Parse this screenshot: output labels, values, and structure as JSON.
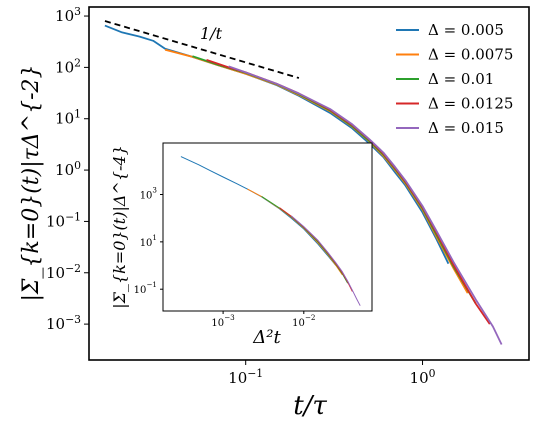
{
  "chart_data": [
    {
      "type": "line",
      "xlabel": "t/τ",
      "ylabel": "|Σ_{k=0}(t)|τΔ^{-2}",
      "xscale": "log",
      "yscale": "log",
      "xlim": [
        0.013,
        4.0
      ],
      "ylim": [
        0.0002,
        1500
      ],
      "xticks": [
        {
          "value": 0.1,
          "base": "10",
          "exp": "−1"
        },
        {
          "value": 1,
          "base": "10",
          "exp": "0"
        }
      ],
      "yticks": [
        {
          "value": 1000,
          "base": "10",
          "exp": "3"
        },
        {
          "value": 100,
          "base": "10",
          "exp": "2"
        },
        {
          "value": 10,
          "base": "10",
          "exp": "1"
        },
        {
          "value": 1,
          "base": "10",
          "exp": "0"
        },
        {
          "value": 0.1,
          "base": "10",
          "exp": "−1"
        },
        {
          "value": 0.01,
          "base": "10",
          "exp": "−2"
        },
        {
          "value": 0.001,
          "base": "10",
          "exp": "−3"
        }
      ],
      "grid": false,
      "legend_position": "top-right",
      "reference_line": {
        "label": "1/t",
        "style": "dashed",
        "color": "#000000",
        "x": [
          0.016,
          0.2
        ],
        "y": [
          800,
          62
        ]
      },
      "series": [
        {
          "name": "Δ = 0.005",
          "color": "#1f77b4",
          "x": [
            0.016,
            0.02,
            0.025,
            0.03,
            0.035,
            0.05,
            0.07,
            0.1,
            0.15,
            0.2,
            0.3,
            0.4,
            0.5,
            0.6,
            0.7,
            0.8,
            1.0,
            1.2,
            1.4
          ],
          "y": [
            650,
            480,
            400,
            330,
            230,
            160,
            110,
            75,
            45,
            28,
            13,
            6.5,
            3.3,
            1.8,
            0.9,
            0.5,
            0.15,
            0.045,
            0.015
          ]
        },
        {
          "name": "Δ = 0.0075",
          "color": "#ff7f0e",
          "x": [
            0.035,
            0.05,
            0.07,
            0.1,
            0.15,
            0.2,
            0.3,
            0.4,
            0.5,
            0.6,
            0.7,
            0.8,
            1.0,
            1.2,
            1.5,
            1.8
          ],
          "y": [
            220,
            160,
            110,
            75,
            46,
            29,
            14,
            7,
            3.6,
            1.9,
            1.0,
            0.55,
            0.17,
            0.05,
            0.012,
            0.004
          ]
        },
        {
          "name": "Δ = 0.01",
          "color": "#2ca02c",
          "x": [
            0.05,
            0.07,
            0.1,
            0.15,
            0.2,
            0.3,
            0.4,
            0.5,
            0.6,
            0.7,
            0.8,
            1.0,
            1.2,
            1.5,
            2.0
          ],
          "y": [
            165,
            112,
            78,
            47,
            30,
            14.5,
            7.2,
            3.7,
            2.0,
            1.05,
            0.58,
            0.18,
            0.055,
            0.013,
            0.0025
          ]
        },
        {
          "name": "Δ = 0.0125",
          "color": "#d62728",
          "x": [
            0.06,
            0.08,
            0.1,
            0.15,
            0.2,
            0.3,
            0.4,
            0.5,
            0.6,
            0.7,
            0.8,
            1.0,
            1.2,
            1.5,
            2.0,
            2.4
          ],
          "y": [
            140,
            100,
            80,
            48,
            31,
            15,
            7.5,
            3.9,
            2.1,
            1.1,
            0.6,
            0.19,
            0.06,
            0.014,
            0.0025,
            0.001
          ]
        },
        {
          "name": "Δ = 0.015",
          "color": "#9467bd",
          "x": [
            0.08,
            0.1,
            0.15,
            0.2,
            0.3,
            0.4,
            0.5,
            0.6,
            0.7,
            0.8,
            1.0,
            1.2,
            1.5,
            2.0,
            2.5,
            2.8
          ],
          "y": [
            105,
            80,
            48,
            31,
            15.5,
            7.8,
            4.0,
            2.2,
            1.15,
            0.63,
            0.2,
            0.065,
            0.016,
            0.003,
            0.0009,
            0.0004
          ]
        }
      ]
    },
    {
      "type": "line",
      "xlabel": "Δ²t",
      "ylabel": "|Σ_{k=0}(t)|Δ^{-4}",
      "xscale": "log",
      "yscale": "log",
      "xlim": [
        0.00018,
        0.07
      ],
      "ylim": [
        0.012,
        150000
      ],
      "xticks": [
        {
          "value": 0.001,
          "base": "10",
          "exp": "−3"
        },
        {
          "value": 0.01,
          "base": "10",
          "exp": "−2"
        }
      ],
      "yticks": [
        {
          "value": 1000,
          "base": "10",
          "exp": "3"
        },
        {
          "value": 10,
          "base": "10",
          "exp": "1"
        },
        {
          "value": 0.1,
          "base": "10",
          "exp": "−1"
        }
      ],
      "series": [
        {
          "name": "Δ = 0.005",
          "color": "#1f77b4",
          "x": [
            0.0003,
            0.0005,
            0.0007,
            0.001,
            0.0015,
            0.002,
            0.003,
            0.005,
            0.007,
            0.01,
            0.015,
            0.02,
            0.025
          ],
          "y": [
            40000,
            18000,
            10000,
            5500,
            2800,
            1700,
            800,
            250,
            100,
            35,
            8,
            2.5,
            1.0
          ]
        },
        {
          "name": "Δ = 0.0075",
          "color": "#ff7f0e",
          "x": [
            0.002,
            0.003,
            0.005,
            0.007,
            0.01,
            0.015,
            0.02,
            0.025,
            0.03
          ],
          "y": [
            1700,
            820,
            260,
            110,
            38,
            9,
            2.8,
            1.0,
            0.4
          ]
        },
        {
          "name": "Δ = 0.01",
          "color": "#2ca02c",
          "x": [
            0.003,
            0.005,
            0.007,
            0.01,
            0.015,
            0.02,
            0.025,
            0.03,
            0.035
          ],
          "y": [
            830,
            270,
            115,
            40,
            10,
            3.0,
            1.1,
            0.45,
            0.18
          ]
        },
        {
          "name": "Δ = 0.0125",
          "color": "#d62728",
          "x": [
            0.005,
            0.007,
            0.01,
            0.015,
            0.02,
            0.025,
            0.03,
            0.035,
            0.04
          ],
          "y": [
            280,
            120,
            42,
            11,
            3.3,
            1.2,
            0.5,
            0.2,
            0.08
          ]
        },
        {
          "name": "Δ = 0.015",
          "color": "#9467bd",
          "x": [
            0.007,
            0.01,
            0.015,
            0.02,
            0.025,
            0.03,
            0.035,
            0.04,
            0.045,
            0.05
          ],
          "y": [
            125,
            44,
            11.5,
            3.5,
            1.3,
            0.55,
            0.22,
            0.09,
            0.04,
            0.02
          ]
        }
      ]
    }
  ]
}
